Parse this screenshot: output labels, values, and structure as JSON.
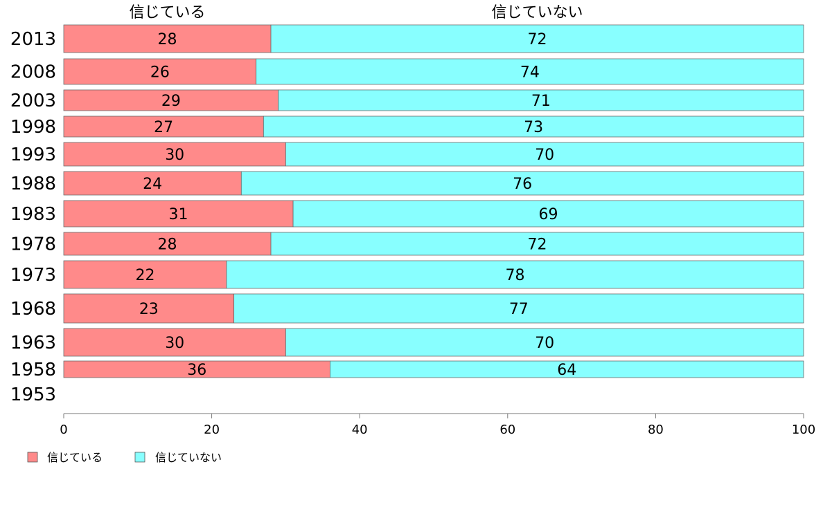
{
  "chart_data": {
    "type": "bar",
    "orientation": "horizontal",
    "stacked": true,
    "categories": [
      "2013",
      "2008",
      "2003",
      "1998",
      "1993",
      "1988",
      "1983",
      "1978",
      "1973",
      "1968",
      "1963",
      "1958",
      "1953"
    ],
    "series": [
      {
        "name": "信じている",
        "color": "#ff8a8a",
        "values": [
          28,
          26,
          29,
          27,
          30,
          24,
          31,
          28,
          22,
          23,
          30,
          36,
          null
        ]
      },
      {
        "name": "信じていない",
        "color": "#88ffff",
        "values": [
          72,
          74,
          71,
          73,
          70,
          76,
          69,
          72,
          78,
          77,
          70,
          64,
          null
        ]
      }
    ],
    "xlim": [
      0,
      100
    ],
    "xticks": [
      0,
      20,
      40,
      60,
      80,
      100
    ],
    "legend_position": "bottom-left",
    "grid": false
  }
}
